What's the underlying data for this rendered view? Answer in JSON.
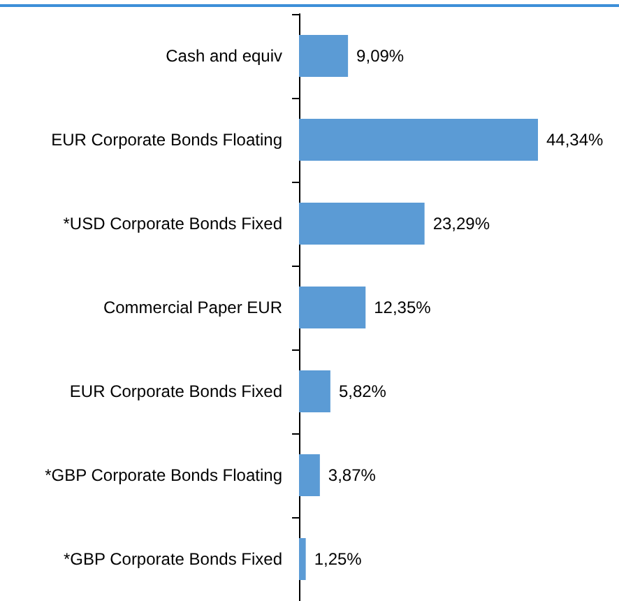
{
  "chart_data": {
    "type": "bar",
    "orientation": "horizontal",
    "categories": [
      "Cash and equiv",
      "EUR Corporate Bonds Floating",
      "*USD Corporate Bonds Fixed",
      "Commercial Paper EUR",
      "EUR Corporate Bonds Fixed",
      "*GBP Corporate Bonds Floating",
      "*GBP Corporate Bonds Fixed"
    ],
    "values": [
      9.09,
      44.34,
      23.29,
      12.35,
      5.82,
      3.87,
      1.25
    ],
    "value_labels": [
      "9,09%",
      "44,34%",
      "23,29%",
      "12,35%",
      "5,82%",
      "3,87%",
      "1,25%"
    ],
    "color": "#5b9bd5"
  }
}
